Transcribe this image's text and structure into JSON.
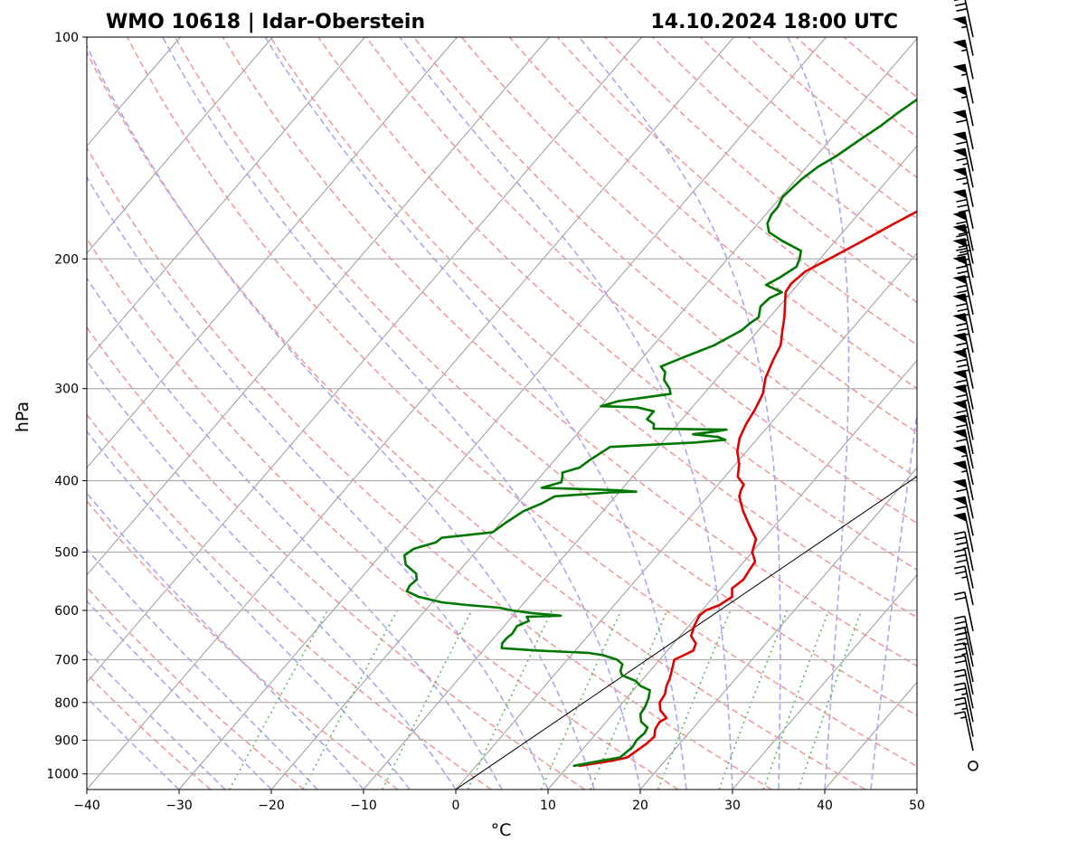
{
  "header": {
    "title_left": "WMO 10618 | Idar-Oberstein",
    "title_right": "14.10.2024 18:00 UTC"
  },
  "chart_data": {
    "type": "line",
    "subtype": "skew-t log-p diagram",
    "xlabel": "°C",
    "ylabel": "hPa",
    "xlim": [
      -40,
      50
    ],
    "ylim_hpa": [
      1050,
      100
    ],
    "x_ticks": [
      -40,
      -30,
      -20,
      -10,
      0,
      10,
      20,
      30,
      40,
      50
    ],
    "x_tick_labels": [
      "−40",
      "−30",
      "−20",
      "−10",
      "0",
      "10",
      "20",
      "30",
      "40",
      "50"
    ],
    "y_ticks": [
      1000,
      900,
      800,
      700,
      600,
      500,
      400,
      300,
      200,
      100
    ],
    "y_tick_labels": [
      "1000",
      "900",
      "800",
      "700",
      "600",
      "500",
      "400",
      "300",
      "200",
      "100"
    ],
    "grid": true,
    "reference_isotherm_c": 0,
    "background_lines": {
      "isotherms_c": [
        -200,
        -190,
        -180,
        -170,
        -160,
        -150,
        -140,
        -130,
        -120,
        -110,
        -100,
        -90,
        -80,
        -70,
        -60,
        -50,
        -40,
        -30,
        -20,
        -10,
        0,
        10,
        20,
        30,
        40,
        50
      ],
      "dry_adiabats_theta_c": [
        -30,
        -20,
        -10,
        0,
        10,
        20,
        30,
        40,
        50,
        60,
        70,
        80,
        90,
        100,
        110,
        120,
        130,
        140,
        150,
        160,
        170,
        180,
        190,
        200
      ],
      "moist_adiabats_start_c": [
        -30,
        -25,
        -20,
        -15,
        -10,
        -5,
        0,
        5,
        10,
        15,
        20,
        25,
        30,
        35,
        40,
        45
      ],
      "mixing_ratio_g_per_kg": [
        0.5,
        1,
        2,
        4,
        7,
        10,
        16,
        24,
        32,
        40
      ],
      "mixing_ratio_top_hpa": 600
    },
    "series": [
      {
        "id": "temperature",
        "color": "#dd0000",
        "points": [
          [
            975,
            11.2
          ],
          [
            960,
            14.2
          ],
          [
            950,
            15.6
          ],
          [
            930,
            16.0
          ],
          [
            910,
            16.4
          ],
          [
            890,
            16.6
          ],
          [
            870,
            16.0
          ],
          [
            850,
            15.8
          ],
          [
            840,
            16.2
          ],
          [
            820,
            14.8
          ],
          [
            800,
            14.0
          ],
          [
            780,
            13.8
          ],
          [
            760,
            13.2
          ],
          [
            740,
            12.8
          ],
          [
            720,
            12.2
          ],
          [
            700,
            11.6
          ],
          [
            680,
            12.8
          ],
          [
            665,
            12.4
          ],
          [
            650,
            11.2
          ],
          [
            630,
            10.6
          ],
          [
            610,
            10.2
          ],
          [
            600,
            10.4
          ],
          [
            590,
            11.4
          ],
          [
            575,
            12.0
          ],
          [
            560,
            11.2
          ],
          [
            545,
            11.6
          ],
          [
            530,
            11.4
          ],
          [
            515,
            11.2
          ],
          [
            500,
            10.0
          ],
          [
            480,
            9.2
          ],
          [
            460,
            7.2
          ],
          [
            440,
            5.2
          ],
          [
            420,
            3.4
          ],
          [
            412,
            3.0
          ],
          [
            405,
            2.8
          ],
          [
            395,
            1.4
          ],
          [
            380,
            0.4
          ],
          [
            365,
            -1.0
          ],
          [
            350,
            -2.0
          ],
          [
            335,
            -2.6
          ],
          [
            320,
            -3.0
          ],
          [
            305,
            -3.6
          ],
          [
            290,
            -4.8
          ],
          [
            275,
            -5.6
          ],
          [
            262,
            -6.2
          ],
          [
            250,
            -7.4
          ],
          [
            240,
            -8.4
          ],
          [
            230,
            -9.6
          ],
          [
            222,
            -10.6
          ],
          [
            216,
            -10.8
          ],
          [
            208,
            -10.4
          ],
          [
            200,
            -9.0
          ],
          [
            190,
            -7.2
          ],
          [
            180,
            -5.4
          ],
          [
            170,
            -3.4
          ],
          [
            162,
            -2.0
          ],
          [
            155,
            -0.8
          ],
          [
            150,
            0.8
          ],
          [
            145,
            3.2
          ],
          [
            140,
            4.2
          ],
          [
            133,
            4.6
          ],
          [
            127,
            5.2
          ],
          [
            122,
            6.2
          ],
          [
            117,
            7.4
          ],
          [
            112,
            7.8
          ],
          [
            107,
            9.0
          ],
          [
            103,
            10.6
          ],
          [
            100,
            11.6
          ]
        ]
      },
      {
        "id": "dewpoint",
        "color": "#007700",
        "points": [
          [
            975,
            10.6
          ],
          [
            960,
            13.0
          ],
          [
            950,
            14.8
          ],
          [
            935,
            15.0
          ],
          [
            920,
            15.2
          ],
          [
            900,
            15.0
          ],
          [
            880,
            15.2
          ],
          [
            865,
            15.0
          ],
          [
            860,
            14.6
          ],
          [
            850,
            13.8
          ],
          [
            830,
            13.0
          ],
          [
            810,
            12.8
          ],
          [
            790,
            12.4
          ],
          [
            770,
            11.8
          ],
          [
            760,
            10.4
          ],
          [
            748,
            9.4
          ],
          [
            735,
            7.4
          ],
          [
            725,
            6.8
          ],
          [
            710,
            6.4
          ],
          [
            700,
            5.4
          ],
          [
            690,
            3.4
          ],
          [
            685,
            1.6
          ],
          [
            680,
            -4.2
          ],
          [
            675,
            -8.2
          ],
          [
            665,
            -8.6
          ],
          [
            655,
            -8.6
          ],
          [
            645,
            -8.4
          ],
          [
            630,
            -8.6
          ],
          [
            620,
            -7.8
          ],
          [
            612,
            -8.4
          ],
          [
            610,
            -4.8
          ],
          [
            605,
            -8.2
          ],
          [
            600,
            -10.6
          ],
          [
            595,
            -12.2
          ],
          [
            590,
            -16.0
          ],
          [
            585,
            -19.0
          ],
          [
            575,
            -22.0
          ],
          [
            565,
            -23.8
          ],
          [
            555,
            -24.0
          ],
          [
            545,
            -23.8
          ],
          [
            535,
            -24.4
          ],
          [
            520,
            -26.4
          ],
          [
            505,
            -27.4
          ],
          [
            495,
            -27.0
          ],
          [
            485,
            -25.2
          ],
          [
            478,
            -25.0
          ],
          [
            470,
            -20.0
          ],
          [
            455,
            -19.4
          ],
          [
            440,
            -18.6
          ],
          [
            430,
            -17.4
          ],
          [
            420,
            -16.6
          ],
          [
            415,
            -11.0
          ],
          [
            414,
            -8.2
          ],
          [
            412,
            -10.4
          ],
          [
            409,
            -18.8
          ],
          [
            402,
            -17.2
          ],
          [
            395,
            -17.6
          ],
          [
            390,
            -18.0
          ],
          [
            384,
            -16.6
          ],
          [
            375,
            -16.2
          ],
          [
            360,
            -15.2
          ],
          [
            355,
            -6.4
          ],
          [
            352,
            -3.4
          ],
          [
            349,
            -4.4
          ],
          [
            346,
            -7.4
          ],
          [
            343,
            -5.2
          ],
          [
            341,
            -4.2
          ],
          [
            340,
            -12.2
          ],
          [
            335,
            -12.6
          ],
          [
            330,
            -13.8
          ],
          [
            322,
            -13.8
          ],
          [
            318,
            -16.0
          ],
          [
            317,
            -20.0
          ],
          [
            312,
            -18.6
          ],
          [
            305,
            -13.6
          ],
          [
            300,
            -14.2
          ],
          [
            292,
            -15.6
          ],
          [
            285,
            -16.2
          ],
          [
            280,
            -17.2
          ],
          [
            272,
            -15.6
          ],
          [
            262,
            -13.4
          ],
          [
            250,
            -11.8
          ],
          [
            245,
            -11.6
          ],
          [
            240,
            -11.2
          ],
          [
            232,
            -12.0
          ],
          [
            226,
            -11.8
          ],
          [
            222,
            -11.0
          ],
          [
            217,
            -13.4
          ],
          [
            212,
            -12.6
          ],
          [
            205,
            -11.8
          ],
          [
            200,
            -12.2
          ],
          [
            195,
            -12.8
          ],
          [
            189,
            -15.8
          ],
          [
            184,
            -18.0
          ],
          [
            179,
            -19.0
          ],
          [
            174,
            -19.4
          ],
          [
            170,
            -19.4
          ],
          [
            165,
            -19.8
          ],
          [
            160,
            -19.6
          ],
          [
            156,
            -19.4
          ],
          [
            150,
            -18.8
          ],
          [
            145,
            -17.8
          ],
          [
            138,
            -16.8
          ],
          [
            132,
            -15.8
          ],
          [
            127,
            -15.2
          ],
          [
            122,
            -14.4
          ],
          [
            117,
            -13.6
          ],
          [
            112,
            -12.8
          ],
          [
            107,
            -12.0
          ],
          [
            103,
            -11.4
          ],
          [
            100,
            -11.0
          ]
        ]
      },
      {
        "id": "parcel",
        "color": "#000000",
        "points": [
          [
            1050,
            0
          ],
          [
            100,
            50
          ]
        ]
      }
    ],
    "wind_barbs": [
      {
        "p": 975,
        "speed_kt": 0
      },
      {
        "p": 930,
        "speed_kt": 15
      },
      {
        "p": 890,
        "speed_kt": 25
      },
      {
        "p": 850,
        "speed_kt": 25
      },
      {
        "p": 815,
        "speed_kt": 20
      },
      {
        "p": 780,
        "speed_kt": 20
      },
      {
        "p": 750,
        "speed_kt": 25
      },
      {
        "p": 715,
        "speed_kt": 35
      },
      {
        "p": 690,
        "speed_kt": 40
      },
      {
        "p": 640,
        "speed_kt": 20
      },
      {
        "p": 590,
        "speed_kt": 25
      },
      {
        "p": 560,
        "speed_kt": 30
      },
      {
        "p": 530,
        "speed_kt": 35
      },
      {
        "p": 500,
        "speed_kt": 50
      },
      {
        "p": 475,
        "speed_kt": 60
      },
      {
        "p": 450,
        "speed_kt": 60
      },
      {
        "p": 425,
        "speed_kt": 55
      },
      {
        "p": 405,
        "speed_kt": 55
      },
      {
        "p": 385,
        "speed_kt": 60
      },
      {
        "p": 368,
        "speed_kt": 60
      },
      {
        "p": 352,
        "speed_kt": 70
      },
      {
        "p": 335,
        "speed_kt": 65
      },
      {
        "p": 320,
        "speed_kt": 65
      },
      {
        "p": 300,
        "speed_kt": 75
      },
      {
        "p": 285,
        "speed_kt": 65
      },
      {
        "p": 268,
        "speed_kt": 80
      },
      {
        "p": 252,
        "speed_kt": 80
      },
      {
        "p": 238,
        "speed_kt": 75
      },
      {
        "p": 224,
        "speed_kt": 75
      },
      {
        "p": 212,
        "speed_kt": 85
      },
      {
        "p": 203,
        "speed_kt": 90
      },
      {
        "p": 195,
        "speed_kt": 80
      },
      {
        "p": 182,
        "speed_kt": 80
      },
      {
        "p": 170,
        "speed_kt": 65
      },
      {
        "p": 160,
        "speed_kt": 65
      },
      {
        "p": 152,
        "speed_kt": 60
      },
      {
        "p": 142,
        "speed_kt": 60
      },
      {
        "p": 132,
        "speed_kt": 55
      },
      {
        "p": 123,
        "speed_kt": 55
      },
      {
        "p": 114,
        "speed_kt": 55
      },
      {
        "p": 106,
        "speed_kt": 55
      },
      {
        "p": 100,
        "speed_kt": 30
      }
    ]
  }
}
